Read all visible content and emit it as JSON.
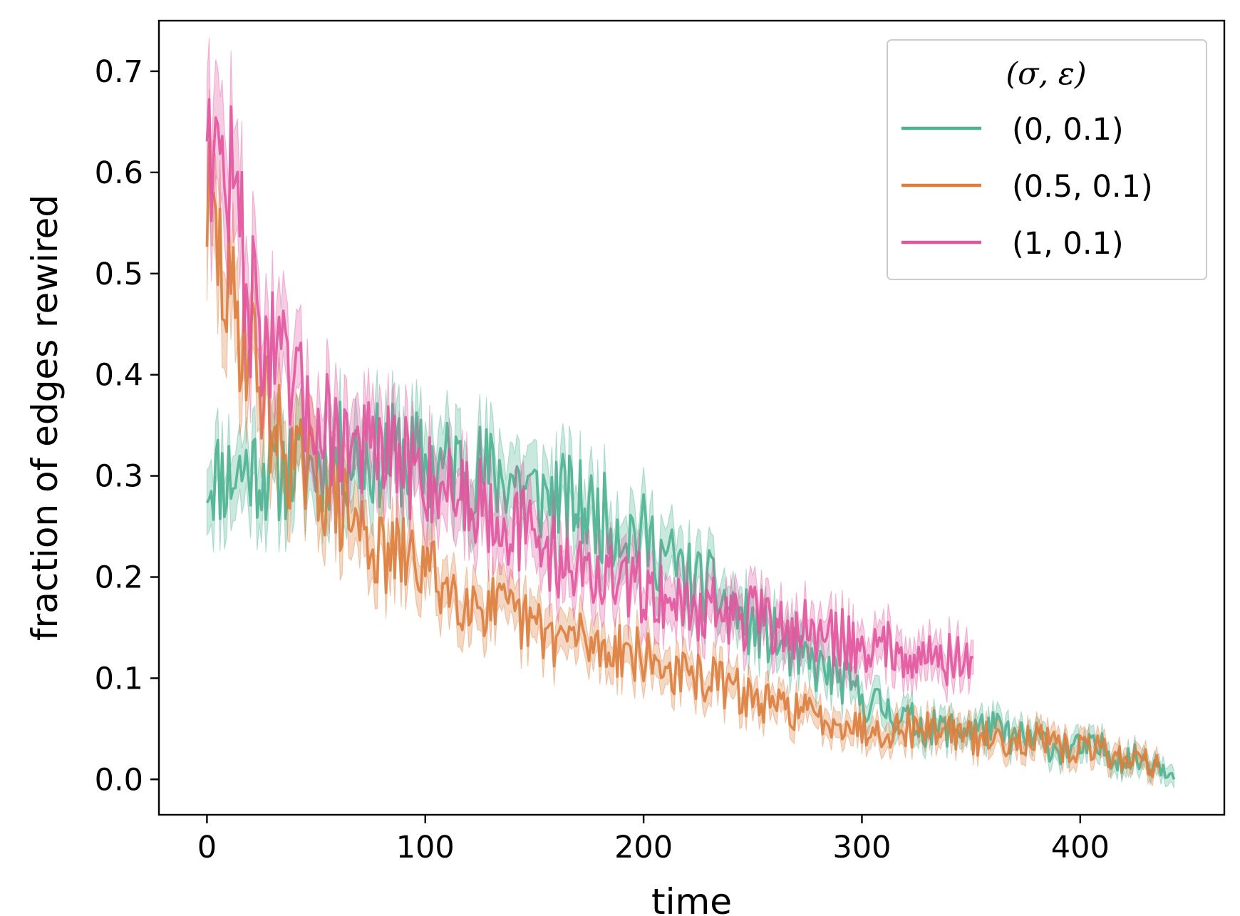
{
  "chart_data": {
    "type": "line",
    "xlabel": "time",
    "ylabel": "fraction of edges rewired",
    "xlim": [
      -22,
      466
    ],
    "ylim": [
      -0.035,
      0.75
    ],
    "xticks": [
      0,
      100,
      200,
      300,
      400
    ],
    "yticks": [
      0.0,
      0.1,
      0.2,
      0.3,
      0.4,
      0.5,
      0.6,
      0.7
    ],
    "xtick_labels": [
      "0",
      "100",
      "200",
      "300",
      "400"
    ],
    "ytick_labels": [
      "0.0",
      "0.1",
      "0.2",
      "0.3",
      "0.4",
      "0.5",
      "0.6",
      "0.7"
    ],
    "grid": false,
    "legend": {
      "title": "(σ, ε)",
      "position": "top-right"
    },
    "band": "shaded ±1 standard error around each mean line",
    "series": [
      {
        "name": "(0, 0.1)",
        "color": "#4cb391",
        "x": [
          0,
          10,
          20,
          30,
          40,
          50,
          60,
          70,
          80,
          90,
          100,
          110,
          120,
          130,
          140,
          150,
          160,
          170,
          180,
          190,
          200,
          210,
          220,
          230,
          240,
          250,
          260,
          270,
          280,
          290,
          300,
          310,
          320,
          330,
          340,
          350,
          360,
          370,
          380,
          390,
          400,
          410,
          420,
          430,
          443
        ],
        "values": [
          0.3,
          0.3,
          0.31,
          0.3,
          0.31,
          0.31,
          0.32,
          0.32,
          0.32,
          0.32,
          0.31,
          0.31,
          0.31,
          0.3,
          0.3,
          0.28,
          0.28,
          0.27,
          0.26,
          0.25,
          0.24,
          0.22,
          0.2,
          0.19,
          0.17,
          0.15,
          0.14,
          0.12,
          0.11,
          0.1,
          0.08,
          0.07,
          0.06,
          0.05,
          0.05,
          0.05,
          0.05,
          0.04,
          0.04,
          0.03,
          0.03,
          0.03,
          0.02,
          0.02,
          0.01
        ]
      },
      {
        "name": "(0.5, 0.1)",
        "color": "#dd7e3d",
        "x": [
          0,
          10,
          20,
          30,
          40,
          50,
          60,
          70,
          80,
          90,
          100,
          110,
          120,
          130,
          140,
          150,
          160,
          170,
          180,
          190,
          200,
          210,
          220,
          230,
          240,
          250,
          260,
          270,
          280,
          290,
          300,
          310,
          320,
          330,
          340,
          350,
          360,
          370,
          380,
          390,
          400,
          410,
          420,
          430,
          436
        ],
        "values": [
          0.57,
          0.47,
          0.43,
          0.35,
          0.31,
          0.3,
          0.27,
          0.25,
          0.22,
          0.22,
          0.21,
          0.19,
          0.18,
          0.17,
          0.16,
          0.15,
          0.14,
          0.14,
          0.13,
          0.13,
          0.12,
          0.11,
          0.1,
          0.1,
          0.09,
          0.08,
          0.07,
          0.07,
          0.06,
          0.06,
          0.05,
          0.05,
          0.05,
          0.05,
          0.05,
          0.04,
          0.04,
          0.04,
          0.04,
          0.03,
          0.03,
          0.03,
          0.02,
          0.02,
          0.01
        ]
      },
      {
        "name": "(1, 0.1)",
        "color": "#e2559f",
        "x": [
          0,
          5,
          10,
          15,
          20,
          30,
          40,
          50,
          60,
          70,
          80,
          90,
          100,
          110,
          120,
          130,
          140,
          150,
          160,
          170,
          180,
          190,
          200,
          210,
          220,
          230,
          240,
          250,
          260,
          270,
          280,
          290,
          300,
          310,
          320,
          330,
          340,
          351
        ],
        "values": [
          0.68,
          0.6,
          0.6,
          0.55,
          0.47,
          0.42,
          0.38,
          0.36,
          0.34,
          0.33,
          0.32,
          0.31,
          0.3,
          0.29,
          0.28,
          0.27,
          0.25,
          0.24,
          0.22,
          0.21,
          0.2,
          0.19,
          0.19,
          0.18,
          0.17,
          0.17,
          0.16,
          0.16,
          0.15,
          0.15,
          0.14,
          0.14,
          0.13,
          0.13,
          0.13,
          0.12,
          0.12,
          0.11
        ]
      }
    ]
  }
}
